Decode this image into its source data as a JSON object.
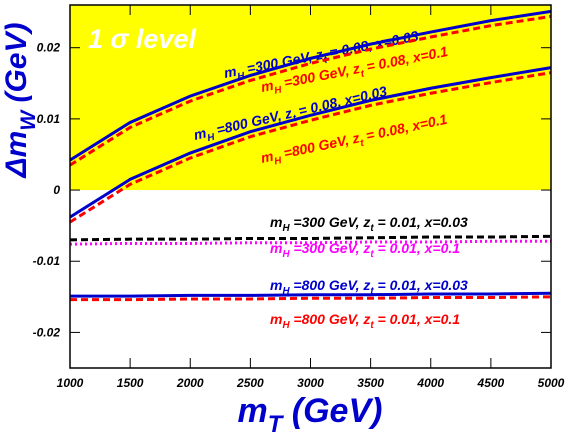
{
  "chart_data": {
    "type": "line",
    "title": "1 σ level",
    "shaded_region": {
      "ylim": [
        0,
        0.026
      ],
      "color": "#ffff00"
    },
    "x_label": [
      "m",
      "T",
      " (GeV)"
    ],
    "y_label": [
      "Δm",
      "W",
      " (GeV)"
    ],
    "axis_color": "#0000cc",
    "x": [
      1000,
      1500,
      2000,
      2500,
      3000,
      3500,
      4000,
      4500,
      5000
    ],
    "xlim": [
      1000,
      5000
    ],
    "xticks": [
      1000,
      1500,
      2000,
      2500,
      3000,
      3500,
      4000,
      4500,
      5000
    ],
    "ylim": [
      -0.025,
      0.026
    ],
    "yticks": [
      -0.02,
      -0.01,
      0,
      0.01,
      0.02
    ],
    "grid": false,
    "series": [
      {
        "label": [
          "m",
          "H",
          " =300 GeV, z",
          "t",
          " = 0.08, x=0.03"
        ],
        "color": "#0000cc",
        "dash": "solid",
        "values": [
          0.0042,
          0.0095,
          0.0132,
          0.0161,
          0.0185,
          0.0205,
          0.0222,
          0.0238,
          0.0251
        ]
      },
      {
        "label": [
          "m",
          "H",
          " =300 GeV, z",
          "t",
          " = 0.08, x=0.1"
        ],
        "color": "#ff0000",
        "dash": "dashed",
        "values": [
          0.0035,
          0.0088,
          0.0125,
          0.0154,
          0.0178,
          0.0198,
          0.0215,
          0.0231,
          0.0244
        ]
      },
      {
        "label": [
          "m",
          "H",
          " =800 GeV, z",
          "t",
          " = 0.08, x=0.03"
        ],
        "color": "#0000cc",
        "dash": "solid",
        "values": [
          -0.0038,
          0.0015,
          0.0052,
          0.0082,
          0.0105,
          0.0126,
          0.0143,
          0.0158,
          0.0172
        ]
      },
      {
        "label": [
          "m",
          "H",
          " =800 GeV, z",
          "t",
          " = 0.08, x=0.1"
        ],
        "color": "#ff0000",
        "dash": "dashed",
        "values": [
          -0.0045,
          0.0008,
          0.0045,
          0.0075,
          0.0098,
          0.0119,
          0.0136,
          0.0151,
          0.0165
        ]
      },
      {
        "label": [
          "m",
          "H",
          " =300 GeV, z",
          "t",
          " = 0.01, x=0.03"
        ],
        "color": "#000000",
        "dash": "dashed",
        "values": [
          -0.007,
          -0.0069,
          -0.0069,
          -0.0068,
          -0.0068,
          -0.0067,
          -0.0066,
          -0.0066,
          -0.0065
        ]
      },
      {
        "label": [
          "m",
          "H",
          " =300 GeV, z",
          "t",
          " = 0.01, x=0.1"
        ],
        "color": "#ff00ff",
        "dash": "dotted",
        "values": [
          -0.0076,
          -0.0075,
          -0.0075,
          -0.0074,
          -0.0074,
          -0.0073,
          -0.0073,
          -0.0072,
          -0.0072
        ]
      },
      {
        "label": [
          "m",
          "H",
          " =800 GeV, z",
          "t",
          " = 0.01, x=0.03"
        ],
        "color": "#0000cc",
        "dash": "solid",
        "values": [
          -0.0149,
          -0.0149,
          -0.0148,
          -0.0148,
          -0.0147,
          -0.0147,
          -0.0146,
          -0.0146,
          -0.0145
        ]
      },
      {
        "label": [
          "m",
          "H",
          " =800 GeV, z",
          "t",
          " = 0.01, x=0.1"
        ],
        "color": "#ff0000",
        "dash": "dashed",
        "values": [
          -0.0154,
          -0.0154,
          -0.0153,
          -0.0153,
          -0.0152,
          -0.0152,
          -0.0151,
          -0.0151,
          -0.015
        ]
      }
    ]
  }
}
